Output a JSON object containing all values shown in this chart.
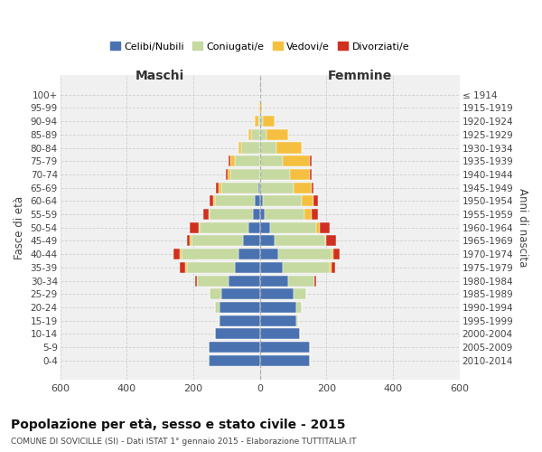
{
  "age_groups": [
    "0-4",
    "5-9",
    "10-14",
    "15-19",
    "20-24",
    "25-29",
    "30-34",
    "35-39",
    "40-44",
    "45-49",
    "50-54",
    "55-59",
    "60-64",
    "65-69",
    "70-74",
    "75-79",
    "80-84",
    "85-89",
    "90-94",
    "95-99",
    "100+"
  ],
  "birth_years": [
    "2010-2014",
    "2005-2009",
    "2000-2004",
    "1995-1999",
    "1990-1994",
    "1985-1989",
    "1980-1984",
    "1975-1979",
    "1970-1974",
    "1965-1969",
    "1960-1964",
    "1955-1959",
    "1950-1954",
    "1945-1949",
    "1940-1944",
    "1935-1939",
    "1930-1934",
    "1925-1929",
    "1920-1924",
    "1915-1919",
    "≤ 1914"
  ],
  "males": {
    "celibi": [
      155,
      155,
      135,
      120,
      120,
      115,
      95,
      75,
      65,
      50,
      35,
      20,
      15,
      5,
      0,
      0,
      0,
      0,
      0,
      0,
      0
    ],
    "coniugati": [
      0,
      0,
      0,
      5,
      15,
      35,
      95,
      145,
      170,
      155,
      145,
      130,
      120,
      110,
      90,
      75,
      55,
      25,
      5,
      2,
      0
    ],
    "vedovi": [
      0,
      0,
      0,
      0,
      0,
      0,
      0,
      5,
      5,
      5,
      5,
      5,
      5,
      8,
      8,
      15,
      10,
      10,
      10,
      2,
      0
    ],
    "divorziati": [
      0,
      0,
      0,
      0,
      0,
      0,
      5,
      15,
      20,
      10,
      25,
      15,
      12,
      10,
      5,
      5,
      0,
      0,
      0,
      0,
      0
    ]
  },
  "females": {
    "nubili": [
      150,
      150,
      120,
      110,
      110,
      100,
      85,
      70,
      55,
      45,
      30,
      15,
      10,
      0,
      0,
      0,
      0,
      0,
      0,
      0,
      0
    ],
    "coniugate": [
      0,
      0,
      0,
      5,
      15,
      40,
      80,
      140,
      160,
      150,
      140,
      120,
      115,
      100,
      90,
      70,
      50,
      20,
      8,
      2,
      0
    ],
    "vedove": [
      0,
      0,
      0,
      0,
      0,
      0,
      0,
      5,
      5,
      5,
      10,
      20,
      35,
      55,
      60,
      80,
      75,
      65,
      35,
      5,
      0
    ],
    "divorziate": [
      0,
      0,
      0,
      0,
      0,
      0,
      5,
      10,
      20,
      30,
      30,
      20,
      15,
      5,
      5,
      5,
      0,
      0,
      0,
      0,
      0
    ]
  },
  "colors": {
    "celibi": "#4a72b0",
    "coniugati": "#c5d9a0",
    "vedovi": "#f5c040",
    "divorziati": "#d03020"
  },
  "title": "Popolazione per età, sesso e stato civile - 2015",
  "subtitle": "COMUNE DI SOVICILLE (SI) - Dati ISTAT 1° gennaio 2015 - Elaborazione TUTTITALIA.IT",
  "xlabel_left": "Maschi",
  "xlabel_right": "Femmine",
  "ylabel_left": "Fasce di età",
  "ylabel_right": "Anni di nascita",
  "xlim": 600,
  "xticks": [
    -600,
    -400,
    -200,
    0,
    200,
    400,
    600
  ],
  "legend_labels": [
    "Celibi/Nubili",
    "Coniugati/e",
    "Vedovi/e",
    "Divorziati/e"
  ],
  "bg_color": "#ffffff",
  "plot_bg_color": "#f0f0f0",
  "grid_color": "#cccccc"
}
